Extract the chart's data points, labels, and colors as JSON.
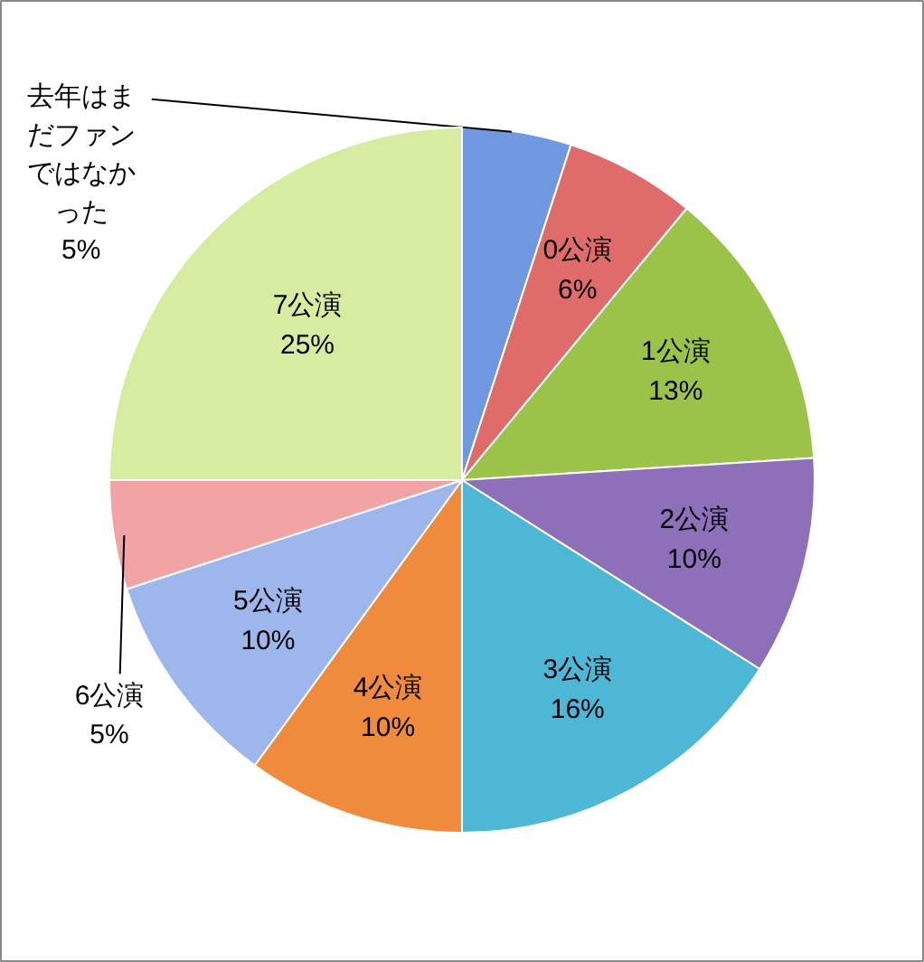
{
  "chart_data": {
    "type": "pie",
    "categories": [
      "去年はまだファンではなかった",
      "0公演",
      "1公演",
      "2公演",
      "3公演",
      "4公演",
      "5公演",
      "6公演",
      "7公演"
    ],
    "values": [
      5,
      6,
      13,
      10,
      16,
      10,
      10,
      5,
      25
    ],
    "value_labels": [
      "5%",
      "6%",
      "13%",
      "10%",
      "16%",
      "10%",
      "10%",
      "5%",
      "25%"
    ],
    "colors": [
      "#6f98e0",
      "#e06b6b",
      "#9bc34a",
      "#8e6fba",
      "#4fb7d6",
      "#f08a3c",
      "#9db6ec",
      "#f2a3a3",
      "#d6eca0"
    ]
  }
}
